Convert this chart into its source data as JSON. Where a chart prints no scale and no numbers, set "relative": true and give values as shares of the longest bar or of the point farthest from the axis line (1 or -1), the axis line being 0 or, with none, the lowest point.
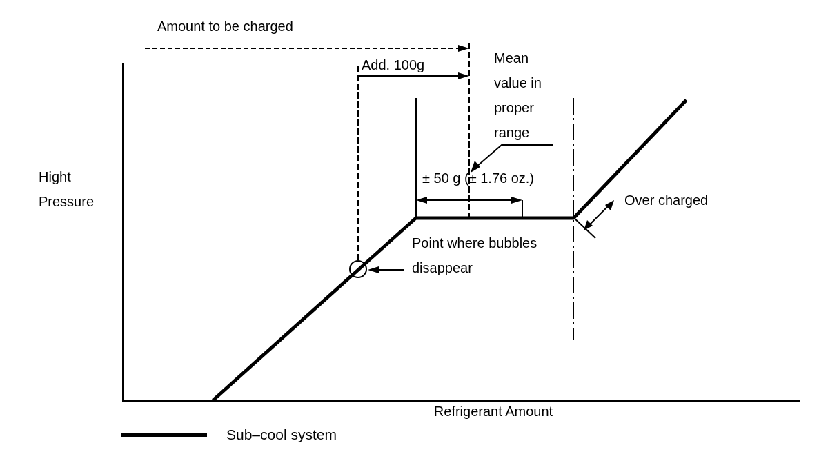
{
  "chart_data": {
    "type": "line",
    "relative": true,
    "xlabel": "Refrigerant Amount",
    "ylabel": "Hight Pressure",
    "categories": [
      null,
      null,
      null,
      null,
      null,
      null,
      null,
      null,
      null,
      null,
      null,
      null,
      null,
      null,
      null,
      null,
      null,
      null,
      null,
      null,
      null,
      null,
      null,
      null,
      null,
      null,
      null,
      null,
      null,
      null,
      null
    ],
    "series": [
      {
        "name": "Sub–cool system",
        "color": "#000000",
        "values": [
          null,
          null,
          null,
          null,
          0,
          null,
          null,
          null,
          null,
          null,
          null,
          null,
          null,
          0.607,
          null,
          null,
          null,
          null,
          null,
          null,
          0.607,
          null,
          null,
          null,
          null,
          1,
          null,
          null,
          null,
          null,
          null
        ]
      }
    ],
    "legend": "bottom left",
    "grid": false,
    "marker": "none",
    "line_style": "solid",
    "annotations": [
      "Amount to be charged",
      "Add. 100g",
      "Mean value in proper range",
      "± 50 g (± 1.76 oz.)",
      "Over charged",
      "Point where bubbles disappear"
    ]
  }
}
